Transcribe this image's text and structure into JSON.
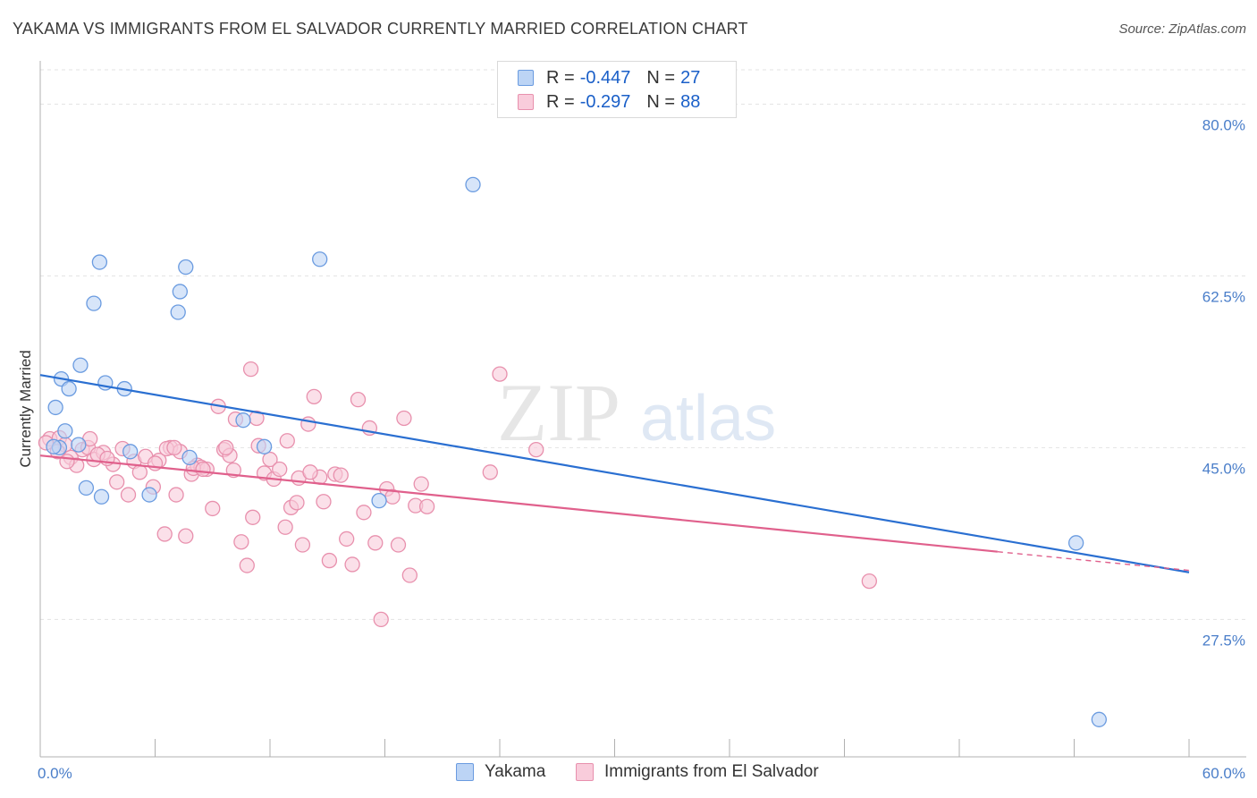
{
  "header": {
    "title": "YAKAMA VS IMMIGRANTS FROM EL SALVADOR CURRENTLY MARRIED CORRELATION CHART",
    "source": "Source: ZipAtlas.com"
  },
  "watermark": {
    "zip": "ZIP",
    "atlas": "atlas"
  },
  "legend": {
    "rows": [
      {
        "r_label": "R = ",
        "r_value": "-0.447",
        "n_label": "N = ",
        "n_value": "27",
        "color": "#6a9be0",
        "fill": "#bcd4f5"
      },
      {
        "r_label": "R = ",
        "r_value": "-0.297",
        "n_label": "N = ",
        "n_value": "88",
        "color": "#e890ad",
        "fill": "#f9ccdb"
      }
    ]
  },
  "bottom_legend": {
    "yakama": "Yakama",
    "salvador": "Immigrants from El Salvador"
  },
  "colors": {
    "yakama_stroke": "#6a9be0",
    "yakama_fill": "#bcd4f5",
    "yakama_line": "#2a6fd1",
    "salvador_stroke": "#e890ad",
    "salvador_fill": "#f9ccdb",
    "salvador_line": "#e0608c",
    "grid": "#e3e3e3",
    "axis": "#b0b0b0"
  },
  "chart_data": {
    "type": "scatter",
    "title": "YAKAMA VS IMMIGRANTS FROM EL SALVADOR CURRENTLY MARRIED CORRELATION CHART",
    "xlabel": "",
    "ylabel": "Currently Married",
    "xlim": [
      0,
      60
    ],
    "ylim": [
      13.5,
      83.5
    ],
    "x_ticks": [
      0,
      6,
      12,
      18,
      24,
      30,
      36,
      42,
      48,
      54,
      60
    ],
    "x_tick_labels": [
      {
        "value": 0,
        "label": "0.0%"
      },
      {
        "value": 60,
        "label": "60.0%"
      }
    ],
    "y_ticks": [
      {
        "value": 80,
        "label": "80.0%"
      },
      {
        "value": 62.5,
        "label": "62.5%"
      },
      {
        "value": 45,
        "label": "45.0%"
      },
      {
        "value": 27.5,
        "label": "27.5%"
      }
    ],
    "grid": true,
    "legend_position": "top-center",
    "series": [
      {
        "name": "Yakama",
        "r": -0.447,
        "n": 27,
        "trend": {
          "x": [
            0,
            60
          ],
          "y": [
            52.4,
            32.3
          ]
        },
        "points": [
          [
            1.0,
            45.0
          ],
          [
            0.7,
            45.1
          ],
          [
            2.0,
            45.3
          ],
          [
            0.8,
            49.1
          ],
          [
            1.1,
            52.0
          ],
          [
            1.5,
            51.0
          ],
          [
            1.3,
            46.7
          ],
          [
            2.1,
            53.4
          ],
          [
            2.4,
            40.9
          ],
          [
            3.2,
            40.0
          ],
          [
            3.4,
            51.6
          ],
          [
            4.4,
            51.0
          ],
          [
            4.7,
            44.6
          ],
          [
            5.7,
            40.2
          ],
          [
            3.1,
            63.9
          ],
          [
            2.8,
            59.7
          ],
          [
            7.3,
            60.9
          ],
          [
            7.6,
            63.4
          ],
          [
            7.8,
            44.0
          ],
          [
            10.6,
            47.8
          ],
          [
            11.7,
            45.1
          ],
          [
            14.6,
            64.2
          ],
          [
            17.7,
            39.6
          ],
          [
            22.6,
            71.8
          ],
          [
            7.2,
            58.8
          ],
          [
            54.1,
            35.3
          ],
          [
            55.3,
            17.3
          ]
        ]
      },
      {
        "name": "Immigrants from El Salvador",
        "r": -0.297,
        "n": 88,
        "trend": {
          "x": [
            0,
            50
          ],
          "y": [
            44.2,
            34.4
          ]
        },
        "trend_dashed": {
          "x": [
            50,
            60
          ],
          "y": [
            34.4,
            32.5
          ]
        },
        "points": [
          [
            0.5,
            45.9
          ],
          [
            1.0,
            46.0
          ],
          [
            1.3,
            45.3
          ],
          [
            1.6,
            44.0
          ],
          [
            1.9,
            43.2
          ],
          [
            2.2,
            44.8
          ],
          [
            2.5,
            45.0
          ],
          [
            2.8,
            43.8
          ],
          [
            3.3,
            44.5
          ],
          [
            3.8,
            43.3
          ],
          [
            4.0,
            41.5
          ],
          [
            4.3,
            44.9
          ],
          [
            4.6,
            40.2
          ],
          [
            4.9,
            43.6
          ],
          [
            5.2,
            42.5
          ],
          [
            5.5,
            44.1
          ],
          [
            5.9,
            41.0
          ],
          [
            6.2,
            43.7
          ],
          [
            6.5,
            36.2
          ],
          [
            6.8,
            45.0
          ],
          [
            7.1,
            40.2
          ],
          [
            7.3,
            44.6
          ],
          [
            7.6,
            36.0
          ],
          [
            7.9,
            42.3
          ],
          [
            8.2,
            43.2
          ],
          [
            8.4,
            43.0
          ],
          [
            8.7,
            42.8
          ],
          [
            9.0,
            38.8
          ],
          [
            9.3,
            49.2
          ],
          [
            9.6,
            44.8
          ],
          [
            9.9,
            44.2
          ],
          [
            10.2,
            47.9
          ],
          [
            10.5,
            35.4
          ],
          [
            10.8,
            33.0
          ],
          [
            11.1,
            37.9
          ],
          [
            11.4,
            45.2
          ],
          [
            11.7,
            42.4
          ],
          [
            12.0,
            43.8
          ],
          [
            12.2,
            41.8
          ],
          [
            12.5,
            42.8
          ],
          [
            12.8,
            36.9
          ],
          [
            13.1,
            38.9
          ],
          [
            13.4,
            39.4
          ],
          [
            13.7,
            35.1
          ],
          [
            14.0,
            47.4
          ],
          [
            14.3,
            50.2
          ],
          [
            14.6,
            42.0
          ],
          [
            14.8,
            39.5
          ],
          [
            15.1,
            33.5
          ],
          [
            15.4,
            42.3
          ],
          [
            15.7,
            42.2
          ],
          [
            16.0,
            35.7
          ],
          [
            16.3,
            33.1
          ],
          [
            16.6,
            49.9
          ],
          [
            16.9,
            38.4
          ],
          [
            17.2,
            47.0
          ],
          [
            17.5,
            35.3
          ],
          [
            17.8,
            27.5
          ],
          [
            18.1,
            40.8
          ],
          [
            18.4,
            40.0
          ],
          [
            18.7,
            35.1
          ],
          [
            19.0,
            48.0
          ],
          [
            19.3,
            32.0
          ],
          [
            19.6,
            39.1
          ],
          [
            19.9,
            41.3
          ],
          [
            20.2,
            39.0
          ],
          [
            0.3,
            45.5
          ],
          [
            0.9,
            44.6
          ],
          [
            1.4,
            43.6
          ],
          [
            2.6,
            45.9
          ],
          [
            3.0,
            44.3
          ],
          [
            3.5,
            43.9
          ],
          [
            6.0,
            43.4
          ],
          [
            6.6,
            44.9
          ],
          [
            7.0,
            45.0
          ],
          [
            8.0,
            42.9
          ],
          [
            8.5,
            42.8
          ],
          [
            9.7,
            45.0
          ],
          [
            10.1,
            42.7
          ],
          [
            11.0,
            53.0
          ],
          [
            11.3,
            48.0
          ],
          [
            12.9,
            45.7
          ],
          [
            13.5,
            41.9
          ],
          [
            14.1,
            42.5
          ],
          [
            23.5,
            42.5
          ],
          [
            24.0,
            52.5
          ],
          [
            25.9,
            44.8
          ],
          [
            43.3,
            31.4
          ]
        ]
      }
    ]
  }
}
